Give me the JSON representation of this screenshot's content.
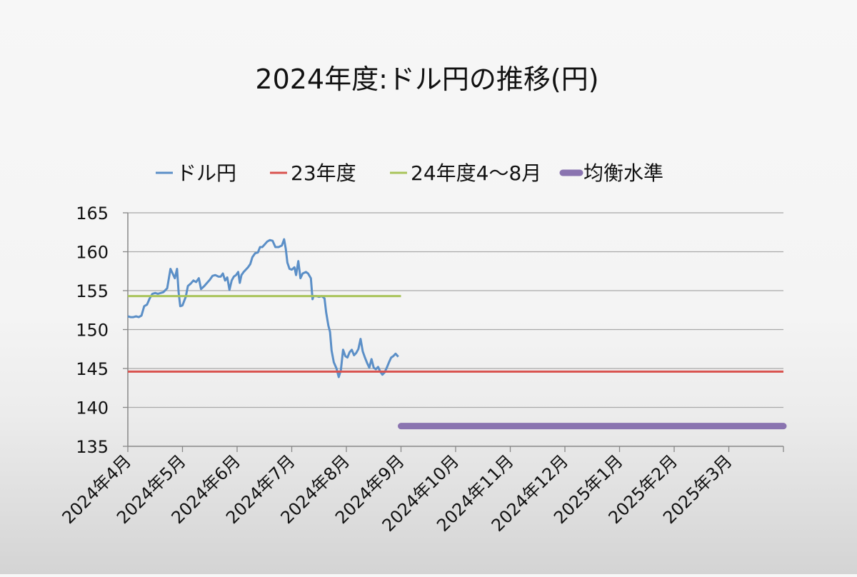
{
  "chart_data": {
    "type": "line",
    "title": "2024年度:ドル円の推移(円)",
    "xlabel": "",
    "ylabel": "",
    "ylim": [
      135,
      165
    ],
    "yticks": [
      135,
      140,
      145,
      150,
      155,
      160,
      165
    ],
    "categories": [
      "2024年4月",
      "2024年5月",
      "2024年6月",
      "2024年7月",
      "2024年8月",
      "2024年9月",
      "2024年10月",
      "2024年11月",
      "2024年12月",
      "2025年1月",
      "2025年2月",
      "2025年3月"
    ],
    "grid": true,
    "legend_position": "top",
    "series": [
      {
        "name": "ドル円",
        "color": "#5b8fc7",
        "style": "line",
        "points": [
          [
            0.0,
            151.7
          ],
          [
            0.05,
            151.6
          ],
          [
            0.1,
            151.6
          ],
          [
            0.15,
            151.7
          ],
          [
            0.2,
            151.6
          ],
          [
            0.25,
            151.8
          ],
          [
            0.3,
            153.0
          ],
          [
            0.35,
            153.2
          ],
          [
            0.4,
            154.0
          ],
          [
            0.45,
            154.6
          ],
          [
            0.5,
            154.7
          ],
          [
            0.55,
            154.6
          ],
          [
            0.6,
            154.7
          ],
          [
            0.65,
            154.8
          ],
          [
            0.72,
            155.3
          ],
          [
            0.78,
            157.8
          ],
          [
            0.82,
            157.2
          ],
          [
            0.86,
            156.6
          ],
          [
            0.9,
            157.8
          ],
          [
            0.93,
            154.8
          ],
          [
            0.96,
            153.0
          ],
          [
            1.0,
            153.1
          ],
          [
            1.06,
            154.2
          ],
          [
            1.1,
            155.6
          ],
          [
            1.15,
            155.9
          ],
          [
            1.2,
            156.3
          ],
          [
            1.25,
            156.1
          ],
          [
            1.3,
            156.6
          ],
          [
            1.34,
            155.2
          ],
          [
            1.4,
            155.6
          ],
          [
            1.45,
            156.0
          ],
          [
            1.5,
            156.4
          ],
          [
            1.55,
            156.9
          ],
          [
            1.6,
            157.0
          ],
          [
            1.66,
            156.8
          ],
          [
            1.7,
            156.8
          ],
          [
            1.74,
            157.2
          ],
          [
            1.78,
            156.3
          ],
          [
            1.82,
            156.7
          ],
          [
            1.86,
            155.1
          ],
          [
            1.9,
            156.3
          ],
          [
            1.94,
            156.8
          ],
          [
            1.98,
            157.0
          ],
          [
            2.02,
            157.4
          ],
          [
            2.05,
            156.0
          ],
          [
            2.08,
            157.0
          ],
          [
            2.12,
            157.4
          ],
          [
            2.16,
            157.7
          ],
          [
            2.2,
            158.0
          ],
          [
            2.24,
            158.4
          ],
          [
            2.28,
            159.3
          ],
          [
            2.33,
            159.8
          ],
          [
            2.38,
            159.9
          ],
          [
            2.42,
            160.6
          ],
          [
            2.46,
            160.6
          ],
          [
            2.5,
            160.9
          ],
          [
            2.55,
            161.3
          ],
          [
            2.6,
            161.5
          ],
          [
            2.65,
            161.4
          ],
          [
            2.7,
            160.6
          ],
          [
            2.76,
            160.6
          ],
          [
            2.82,
            160.8
          ],
          [
            2.86,
            161.6
          ],
          [
            2.89,
            160.4
          ],
          [
            2.92,
            158.6
          ],
          [
            2.96,
            157.8
          ],
          [
            3.0,
            157.7
          ],
          [
            3.05,
            158.0
          ],
          [
            3.08,
            157.0
          ],
          [
            3.12,
            158.8
          ],
          [
            3.16,
            156.6
          ],
          [
            3.2,
            157.2
          ],
          [
            3.26,
            157.4
          ],
          [
            3.3,
            157.2
          ],
          [
            3.35,
            156.6
          ],
          [
            3.38,
            153.9
          ],
          [
            3.4,
            154.3
          ],
          [
            3.45,
            154.3
          ],
          [
            3.5,
            154.2
          ],
          [
            3.55,
            154.3
          ],
          [
            3.6,
            154.0
          ],
          [
            3.63,
            152.2
          ],
          [
            3.67,
            150.5
          ],
          [
            3.7,
            149.7
          ],
          [
            3.73,
            147.3
          ],
          [
            3.77,
            145.8
          ],
          [
            3.82,
            145.0
          ],
          [
            3.86,
            143.9
          ],
          [
            3.9,
            144.8
          ],
          [
            3.94,
            147.4
          ],
          [
            3.98,
            146.6
          ],
          [
            4.02,
            146.4
          ],
          [
            4.06,
            147.1
          ],
          [
            4.1,
            147.4
          ],
          [
            4.14,
            146.7
          ],
          [
            4.18,
            147.0
          ],
          [
            4.22,
            147.5
          ],
          [
            4.26,
            148.8
          ],
          [
            4.3,
            147.2
          ],
          [
            4.34,
            146.4
          ],
          [
            4.38,
            145.7
          ],
          [
            4.42,
            145.1
          ],
          [
            4.46,
            146.2
          ],
          [
            4.5,
            145.1
          ],
          [
            4.54,
            144.9
          ],
          [
            4.58,
            145.2
          ],
          [
            4.62,
            144.6
          ],
          [
            4.66,
            144.2
          ],
          [
            4.7,
            144.5
          ],
          [
            4.74,
            145.1
          ],
          [
            4.78,
            145.8
          ],
          [
            4.82,
            146.4
          ],
          [
            4.86,
            146.6
          ],
          [
            4.9,
            146.9
          ],
          [
            4.95,
            146.5
          ]
        ]
      },
      {
        "name": "23年度",
        "color": "#d9534f",
        "style": "line",
        "from": 0,
        "to": 12,
        "value": 144.6
      },
      {
        "name": "24年度4〜8月",
        "color": "#a9c45a",
        "style": "line",
        "from": 0,
        "to": 5,
        "value": 154.3
      },
      {
        "name": "均衡水準",
        "color": "#8a74b0",
        "style": "thick",
        "from": 5,
        "to": 12,
        "value": 137.6
      }
    ]
  }
}
